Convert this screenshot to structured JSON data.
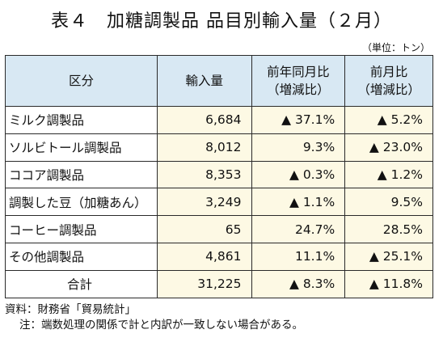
{
  "title": "表４　加糖調製品 品目別輸入量（２月）",
  "unit": "（単位：トン）",
  "headers": [
    "区分",
    "輸入量",
    "前年同月比\n（増減比）",
    "前月比\n（増減比）"
  ],
  "rows": [
    {
      "name": "ミルク調製品",
      "volume": "6,684",
      "yoy": "▲ 37.1%",
      "mom": "▲ 5.2%"
    },
    {
      "name": "ソルビトール調製品",
      "volume": "8,012",
      "yoy": "9.3%",
      "mom": "▲ 23.0%"
    },
    {
      "name": "ココア調製品",
      "volume": "8,353",
      "yoy": "▲ 0.3%",
      "mom": "▲ 1.2%"
    },
    {
      "name": "調製した豆（加糖あん）",
      "volume": "3,249",
      "yoy": "▲ 1.1%",
      "mom": "9.5%"
    },
    {
      "name": "コーヒー調製品",
      "volume": "65",
      "yoy": "24.7%",
      "mom": "28.5%"
    },
    {
      "name": "その他調製品",
      "volume": "4,861",
      "yoy": "11.1%",
      "mom": "▲ 25.1%"
    },
    {
      "name": "合計",
      "volume": "31,225",
      "yoy": "▲ 8.3%",
      "mom": "▲ 11.8%"
    }
  ],
  "footer": {
    "source": "資料：財務省「貿易統計」",
    "note": "注：端数処理の関係で計と内訳が一致しない場合がある。"
  }
}
